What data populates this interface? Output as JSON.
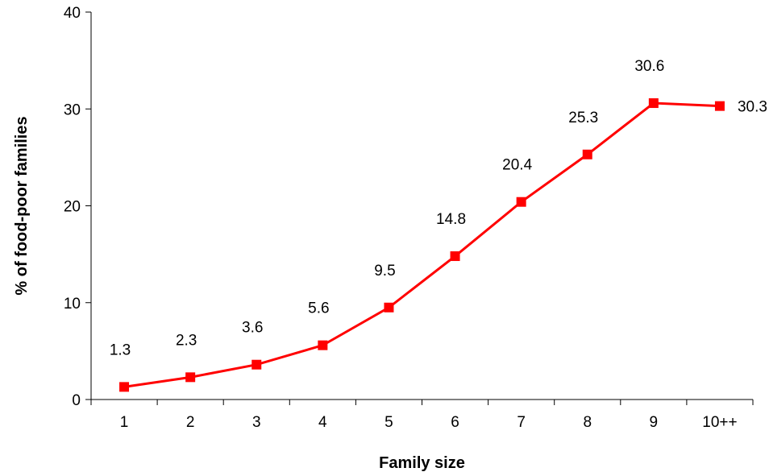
{
  "chart_data": {
    "type": "line",
    "categories": [
      "1",
      "2",
      "3",
      "4",
      "5",
      "6",
      "7",
      "8",
      "9",
      "10++"
    ],
    "series": [
      {
        "values": [
          1.3,
          2.3,
          3.6,
          5.6,
          9.5,
          14.8,
          20.4,
          25.3,
          30.6,
          30.3
        ],
        "color": "#ff0000"
      }
    ],
    "data_labels": [
      "1.3",
      "2.3",
      "3.6",
      "5.6",
      "9.5",
      "14.8",
      "20.4",
      "25.3",
      "30.6",
      "30.3"
    ],
    "xlabel": "Family size",
    "ylabel": "% of food-poor families",
    "ylim": [
      0,
      40
    ],
    "yticks": [
      0,
      10,
      20,
      30,
      40
    ],
    "grid": false,
    "marker": "square"
  }
}
